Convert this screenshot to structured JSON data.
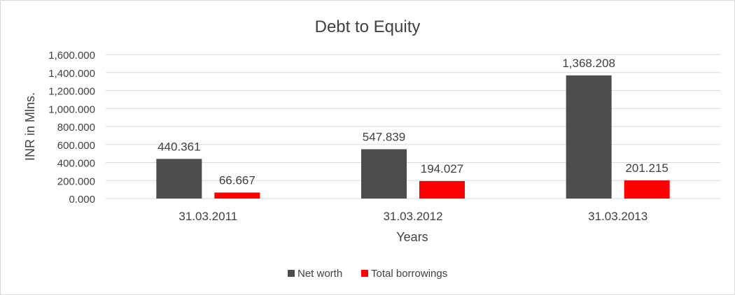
{
  "chart_data": {
    "type": "bar",
    "title": "Debt to Equity",
    "xlabel": "Years",
    "ylabel": "INR in Mlns.",
    "categories": [
      "31.03.2011",
      "31.03.2012",
      "31.03.2013"
    ],
    "series": [
      {
        "name": "Net worth",
        "values": [
          440.361,
          547.839,
          1368.208
        ],
        "color": "#4d4d4d"
      },
      {
        "name": "Total borrowings",
        "values": [
          66.667,
          194.027,
          201.215
        ],
        "color": "#ff0000"
      }
    ],
    "data_labels": [
      [
        "440.361",
        "547.839",
        "1,368.208"
      ],
      [
        "66.667",
        "194.027",
        "201.215"
      ]
    ],
    "ylim": [
      0,
      1600
    ],
    "yticks": [
      0,
      200,
      400,
      600,
      800,
      1000,
      1200,
      1400,
      1600
    ],
    "ytick_labels": [
      "0.000",
      "200.000",
      "400.000",
      "600.000",
      "800.000",
      "1,000.000",
      "1,200.000",
      "1,400.000",
      "1,600.000"
    ],
    "grid": true,
    "legend": "bottom",
    "colors": {
      "gridline": "#d9d9d9",
      "text": "#404040"
    }
  }
}
